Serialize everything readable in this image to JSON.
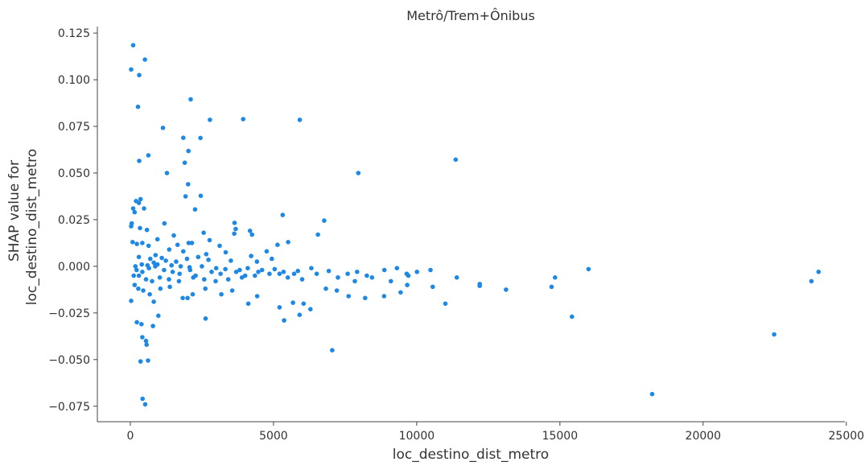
{
  "chart_data": {
    "type": "scatter",
    "title": "Metrô/Trem+Ônibus",
    "xlabel": "loc_destino_dist_metro",
    "ylabel_lines": [
      "SHAP value for",
      "loc_destino_dist_metro"
    ],
    "xlim": [
      -1150,
      24950
    ],
    "ylim": [
      -0.0833,
      0.1285
    ],
    "x_ticks": [
      0,
      5000,
      10000,
      15000,
      20000,
      25000
    ],
    "x_tick_labels": [
      "0",
      "5000",
      "10000",
      "15000",
      "20000",
      "25000"
    ],
    "y_ticks": [
      -0.075,
      -0.05,
      -0.025,
      0.0,
      0.025,
      0.05,
      0.075,
      0.1,
      0.125
    ],
    "y_tick_labels": [
      "−0.075",
      "−0.050",
      "−0.025",
      "0.000",
      "0.025",
      "0.050",
      "0.075",
      "0.100",
      "0.125"
    ],
    "grid": false,
    "marker_color": "#1E88E5",
    "points": [
      [
        100,
        0.1185
      ],
      [
        30,
        0.1055
      ],
      [
        510,
        0.1108
      ],
      [
        310,
        0.1025
      ],
      [
        270,
        0.0855
      ],
      [
        2110,
        0.0895
      ],
      [
        2780,
        0.0785
      ],
      [
        3940,
        0.0789
      ],
      [
        5920,
        0.0785
      ],
      [
        1140,
        0.0742
      ],
      [
        1850,
        0.0689
      ],
      [
        2450,
        0.0688
      ],
      [
        2030,
        0.0618
      ],
      [
        630,
        0.0595
      ],
      [
        310,
        0.0565
      ],
      [
        1280,
        0.05
      ],
      [
        7960,
        0.05
      ],
      [
        1900,
        0.0555
      ],
      [
        11360,
        0.0572
      ],
      [
        2020,
        0.044
      ],
      [
        1930,
        0.0375
      ],
      [
        2460,
        0.0378
      ],
      [
        360,
        0.036
      ],
      [
        200,
        0.035
      ],
      [
        300,
        0.034
      ],
      [
        480,
        0.031
      ],
      [
        100,
        0.031
      ],
      [
        2260,
        0.0305
      ],
      [
        150,
        0.029
      ],
      [
        5320,
        0.0275
      ],
      [
        6770,
        0.0245
      ],
      [
        1190,
        0.023
      ],
      [
        3640,
        0.0233
      ],
      [
        50,
        0.023
      ],
      [
        30,
        0.0215
      ],
      [
        340,
        0.0205
      ],
      [
        580,
        0.0195
      ],
      [
        3680,
        0.02
      ],
      [
        4180,
        0.019
      ],
      [
        4250,
        0.017
      ],
      [
        6550,
        0.017
      ],
      [
        3630,
        0.0175
      ],
      [
        1520,
        0.0165
      ],
      [
        2560,
        0.018
      ],
      [
        5510,
        0.013
      ],
      [
        5140,
        0.0115
      ],
      [
        2770,
        0.014
      ],
      [
        2040,
        0.0125
      ],
      [
        3120,
        0.011
      ],
      [
        950,
        0.0145
      ],
      [
        80,
        0.013
      ],
      [
        230,
        0.012
      ],
      [
        420,
        0.0125
      ],
      [
        640,
        0.011
      ],
      [
        1650,
        0.0115
      ],
      [
        2150,
        0.0125
      ],
      [
        4760,
        0.008
      ],
      [
        1360,
        0.009
      ],
      [
        1850,
        0.008
      ],
      [
        2650,
        0.0065
      ],
      [
        3330,
        0.0075
      ],
      [
        4220,
        0.0055
      ],
      [
        880,
        0.006
      ],
      [
        300,
        0.005
      ],
      [
        1100,
        0.0045
      ],
      [
        2370,
        0.005
      ],
      [
        1980,
        0.004
      ],
      [
        2730,
        0.0035
      ],
      [
        3510,
        0.003
      ],
      [
        4420,
        0.0025
      ],
      [
        4940,
        0.004
      ],
      [
        820,
        0.002
      ],
      [
        1240,
        0.003
      ],
      [
        1600,
        0.0025
      ],
      [
        400,
        0.001
      ],
      [
        180,
        0.0
      ],
      [
        600,
        0.0005
      ],
      [
        950,
        0.001
      ],
      [
        1440,
        0.0005
      ],
      [
        1760,
        0.0
      ],
      [
        2070,
        -0.0005
      ],
      [
        2500,
        0.0
      ],
      [
        3000,
        -0.001
      ],
      [
        3320,
        -0.0015
      ],
      [
        3820,
        -0.002
      ],
      [
        4100,
        -0.001
      ],
      [
        4600,
        -0.002
      ],
      [
        5040,
        -0.0015
      ],
      [
        5350,
        -0.003
      ],
      [
        5850,
        -0.0025
      ],
      [
        6320,
        -0.001
      ],
      [
        6930,
        -0.0025
      ],
      [
        7590,
        -0.004
      ],
      [
        7920,
        -0.003
      ],
      [
        8260,
        -0.005
      ],
      [
        8870,
        -0.002
      ],
      [
        9310,
        -0.001
      ],
      [
        9650,
        -0.004
      ],
      [
        10010,
        -0.003
      ],
      [
        10480,
        -0.002
      ],
      [
        11400,
        -0.006
      ],
      [
        12200,
        -0.0095
      ],
      [
        12200,
        -0.0105
      ],
      [
        13120,
        -0.0125
      ],
      [
        14710,
        -0.011
      ],
      [
        14830,
        -0.006
      ],
      [
        16000,
        -0.0015
      ],
      [
        23780,
        -0.008
      ],
      [
        24030,
        -0.003
      ],
      [
        300,
        -0.005
      ],
      [
        550,
        -0.007
      ],
      [
        760,
        -0.008
      ],
      [
        1030,
        -0.006
      ],
      [
        1350,
        -0.007
      ],
      [
        1700,
        -0.008
      ],
      [
        2200,
        -0.006
      ],
      [
        2580,
        -0.007
      ],
      [
        2980,
        -0.008
      ],
      [
        3420,
        -0.007
      ],
      [
        3900,
        -0.006
      ],
      [
        4350,
        -0.005
      ],
      [
        4860,
        -0.004
      ],
      [
        5500,
        -0.006
      ],
      [
        6000,
        -0.007
      ],
      [
        6510,
        -0.004
      ],
      [
        7250,
        -0.006
      ],
      [
        7840,
        -0.008
      ],
      [
        8440,
        -0.006
      ],
      [
        9100,
        -0.008
      ],
      [
        9710,
        -0.005
      ],
      [
        10560,
        -0.011
      ],
      [
        11000,
        -0.02
      ],
      [
        30,
        -0.0185
      ],
      [
        150,
        -0.01
      ],
      [
        280,
        -0.012
      ],
      [
        450,
        -0.013
      ],
      [
        680,
        -0.015
      ],
      [
        820,
        -0.019
      ],
      [
        1050,
        -0.012
      ],
      [
        1380,
        -0.011
      ],
      [
        1830,
        -0.017
      ],
      [
        2000,
        -0.017
      ],
      [
        2180,
        -0.015
      ],
      [
        2620,
        -0.012
      ],
      [
        3180,
        -0.015
      ],
      [
        3560,
        -0.013
      ],
      [
        4120,
        -0.02
      ],
      [
        4430,
        -0.016
      ],
      [
        5210,
        -0.022
      ],
      [
        5910,
        -0.026
      ],
      [
        6050,
        -0.02
      ],
      [
        6290,
        -0.023
      ],
      [
        6830,
        -0.012
      ],
      [
        7210,
        -0.013
      ],
      [
        7620,
        -0.016
      ],
      [
        8200,
        -0.017
      ],
      [
        8860,
        -0.016
      ],
      [
        9440,
        -0.014
      ],
      [
        9670,
        -0.01
      ],
      [
        2630,
        -0.028
      ],
      [
        980,
        -0.0265
      ],
      [
        5370,
        -0.029
      ],
      [
        5680,
        -0.0195
      ],
      [
        15420,
        -0.027
      ],
      [
        230,
        -0.03
      ],
      [
        390,
        -0.031
      ],
      [
        790,
        -0.032
      ],
      [
        420,
        -0.038
      ],
      [
        550,
        -0.04
      ],
      [
        570,
        -0.042
      ],
      [
        7050,
        -0.045
      ],
      [
        22480,
        -0.0365
      ],
      [
        620,
        -0.0505
      ],
      [
        360,
        -0.051
      ],
      [
        430,
        -0.071
      ],
      [
        520,
        -0.074
      ],
      [
        18220,
        -0.0685
      ],
      [
        120,
        -0.005
      ],
      [
        220,
        -0.002
      ],
      [
        420,
        -0.003
      ],
      [
        650,
        -0.001
      ],
      [
        700,
        0.004
      ],
      [
        870,
        0.0
      ],
      [
        1180,
        -0.002
      ],
      [
        1480,
        -0.003
      ],
      [
        1720,
        -0.004
      ],
      [
        2090,
        -0.002
      ],
      [
        2280,
        -0.005
      ],
      [
        2840,
        -0.003
      ],
      [
        3150,
        -0.004
      ],
      [
        3700,
        -0.003
      ],
      [
        4010,
        -0.005
      ],
      [
        4470,
        -0.003
      ],
      [
        5210,
        -0.004
      ],
      [
        5720,
        -0.004
      ]
    ]
  }
}
